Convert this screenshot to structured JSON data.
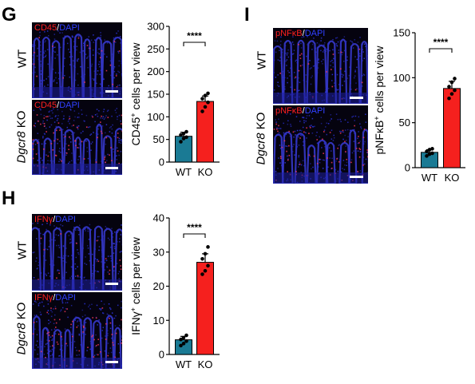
{
  "panels": {
    "G": {
      "letter": "G",
      "stain": {
        "marker": "CD45",
        "sep": "/",
        "dapi": "DAPI"
      },
      "rows": [
        {
          "label_plain": "WT",
          "label_ital": ""
        },
        {
          "label_ital": "Dgcr8",
          "label_plain": " KO"
        }
      ],
      "chart": {
        "type": "bar",
        "categories": [
          "WT",
          "KO"
        ],
        "values": [
          57,
          134
        ],
        "errors": [
          9,
          12
        ],
        "points": [
          [
            45,
            52,
            55,
            60,
            63,
            67
          ],
          [
            112,
            122,
            132,
            140,
            147,
            152
          ]
        ],
        "ylim": [
          0,
          300
        ],
        "yticks": [
          0,
          50,
          100,
          150,
          200,
          250,
          300
        ],
        "ylabel_pre": "CD45",
        "ylabel_sup": "+",
        "ylabel_post": " cells per view",
        "significance": "****",
        "colors": [
          "#1a7a94",
          "#f5201e"
        ]
      }
    },
    "H": {
      "letter": "H",
      "stain": {
        "marker": "IFNγ",
        "sep": "/",
        "dapi": "DAPI"
      },
      "rows": [
        {
          "label_plain": "WT",
          "label_ital": ""
        },
        {
          "label_ital": "Dgcr8",
          "label_plain": " KO"
        }
      ],
      "chart": {
        "type": "bar",
        "categories": [
          "WT",
          "KO"
        ],
        "values": [
          4.3,
          27
        ],
        "errors": [
          1.0,
          2.5
        ],
        "points": [
          [
            2.6,
            3.2,
            3.9,
            4.4,
            4.9,
            5.6
          ],
          [
            23.5,
            24.5,
            26.0,
            28.0,
            29.5,
            31.5
          ]
        ],
        "ylim": [
          0,
          40
        ],
        "yticks": [
          0,
          10,
          20,
          30,
          40
        ],
        "ylabel_pre": "IFNγ",
        "ylabel_sup": "+",
        "ylabel_post": " cells per view",
        "significance": "****",
        "colors": [
          "#1a7a94",
          "#f5201e"
        ]
      }
    },
    "I": {
      "letter": "I",
      "stain": {
        "marker": "pNFκB",
        "sep": "/",
        "dapi": "DAPI"
      },
      "rows": [
        {
          "label_plain": "WT",
          "label_ital": ""
        },
        {
          "label_ital": "Dgcr8",
          "label_plain": " KO"
        }
      ],
      "chart": {
        "type": "bar",
        "categories": [
          "WT",
          "KO"
        ],
        "values": [
          17,
          88
        ],
        "errors": [
          3,
          8
        ],
        "points": [
          [
            13,
            15,
            16,
            18,
            20,
            21
          ],
          [
            77,
            82,
            86,
            90,
            95,
            99
          ]
        ],
        "ylim": [
          0,
          150
        ],
        "yticks": [
          0,
          50,
          100,
          150
        ],
        "ylabel_pre": "pNFκB",
        "ylabel_sup": "+",
        "ylabel_post": " cells per view",
        "significance": "****",
        "colors": [
          "#1a7a94",
          "#f5201e"
        ]
      }
    }
  },
  "chart_data": [
    {
      "type": "bar",
      "categories": [
        "WT",
        "KO"
      ],
      "values": [
        57,
        134
      ],
      "ylabel": "CD45+ cells per view",
      "ylim": [
        0,
        300
      ]
    },
    {
      "type": "bar",
      "categories": [
        "WT",
        "KO"
      ],
      "values": [
        4.3,
        27
      ],
      "ylabel": "IFNγ+ cells per view",
      "ylim": [
        0,
        40
      ]
    },
    {
      "type": "bar",
      "categories": [
        "WT",
        "KO"
      ],
      "values": [
        17,
        88
      ],
      "ylabel": "pNFκB+ cells per view",
      "ylim": [
        0,
        150
      ]
    }
  ]
}
